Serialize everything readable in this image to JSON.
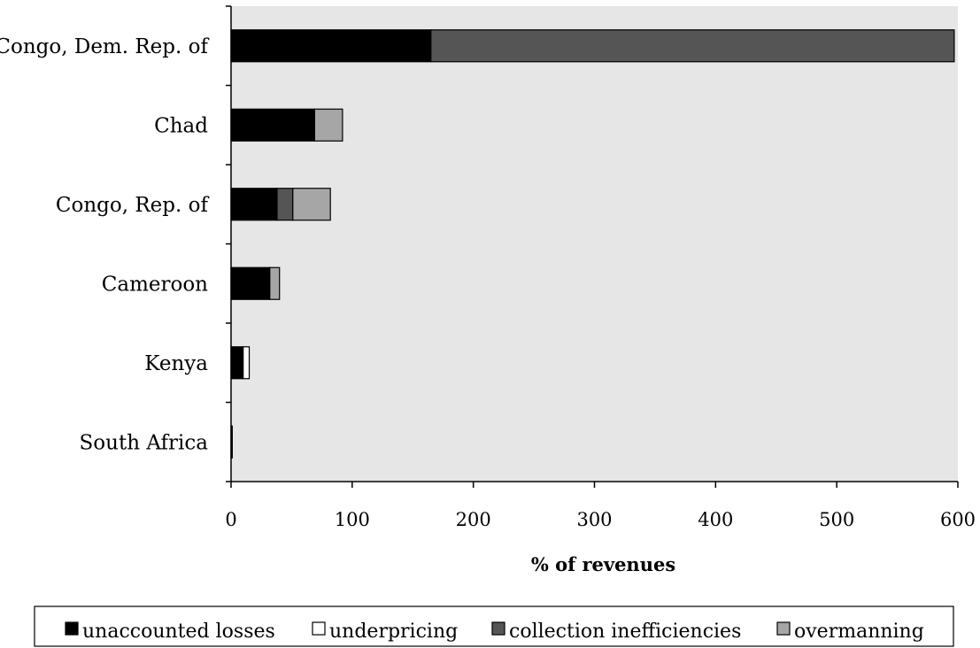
{
  "chart_data": {
    "type": "bar",
    "orientation": "horizontal",
    "stacked": true,
    "title": "",
    "xlabel": "% of revenues",
    "ylabel": "",
    "xlim": [
      0,
      600
    ],
    "x_ticks": [
      0,
      100,
      200,
      300,
      400,
      500,
      600
    ],
    "grid": false,
    "legend_position": "bottom",
    "categories": [
      "Congo, Dem. Rep. of",
      "Chad",
      "Congo, Rep. of",
      "Cameroon",
      "Kenya",
      "South Africa"
    ],
    "series": [
      {
        "name": "unaccounted losses",
        "color": "#000000",
        "values": [
          165,
          69,
          38,
          32,
          10,
          1
        ]
      },
      {
        "name": "underpricing",
        "color": "#ffffff",
        "values": [
          0,
          0,
          0,
          0,
          5,
          0
        ]
      },
      {
        "name": "collection inefficiencies",
        "color": "#555555",
        "values": [
          432,
          0,
          13,
          0,
          0,
          0
        ]
      },
      {
        "name": "overmanning",
        "color": "#a6a6a6",
        "values": [
          0,
          23,
          31,
          8,
          0,
          0
        ]
      }
    ],
    "plot_background": "#e6e6e6"
  }
}
